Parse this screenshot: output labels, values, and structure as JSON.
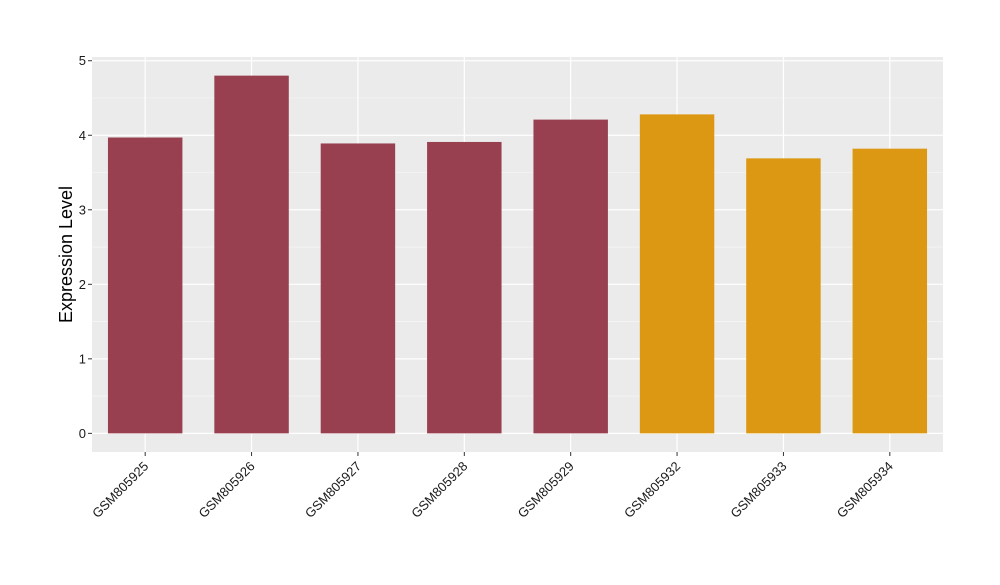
{
  "chart_data": {
    "type": "bar",
    "title": "",
    "xlabel": "",
    "ylabel": "Expression Level",
    "ylim": [
      -0.25,
      5.05
    ],
    "yticks": [
      0,
      1,
      2,
      3,
      4,
      5
    ],
    "ytick_labels": [
      "0",
      "1",
      "2",
      "3",
      "4",
      "5"
    ],
    "categories": [
      "GSM805925",
      "GSM805926",
      "GSM805927",
      "GSM805928",
      "GSM805929",
      "GSM805932",
      "GSM805933",
      "GSM805934"
    ],
    "values": [
      3.97,
      4.8,
      3.89,
      3.91,
      4.21,
      4.28,
      3.69,
      3.82
    ],
    "bar_colors": [
      "#98404f",
      "#98404f",
      "#98404f",
      "#98404f",
      "#98404f",
      "#dc9813",
      "#dc9813",
      "#dc9813"
    ],
    "grid": true,
    "legend": "none",
    "colors": {
      "panel_background": "#ebebeb",
      "grid_major": "#ffffff",
      "grid_minor": "#f5f5f5",
      "tick_color": "#333333"
    }
  }
}
